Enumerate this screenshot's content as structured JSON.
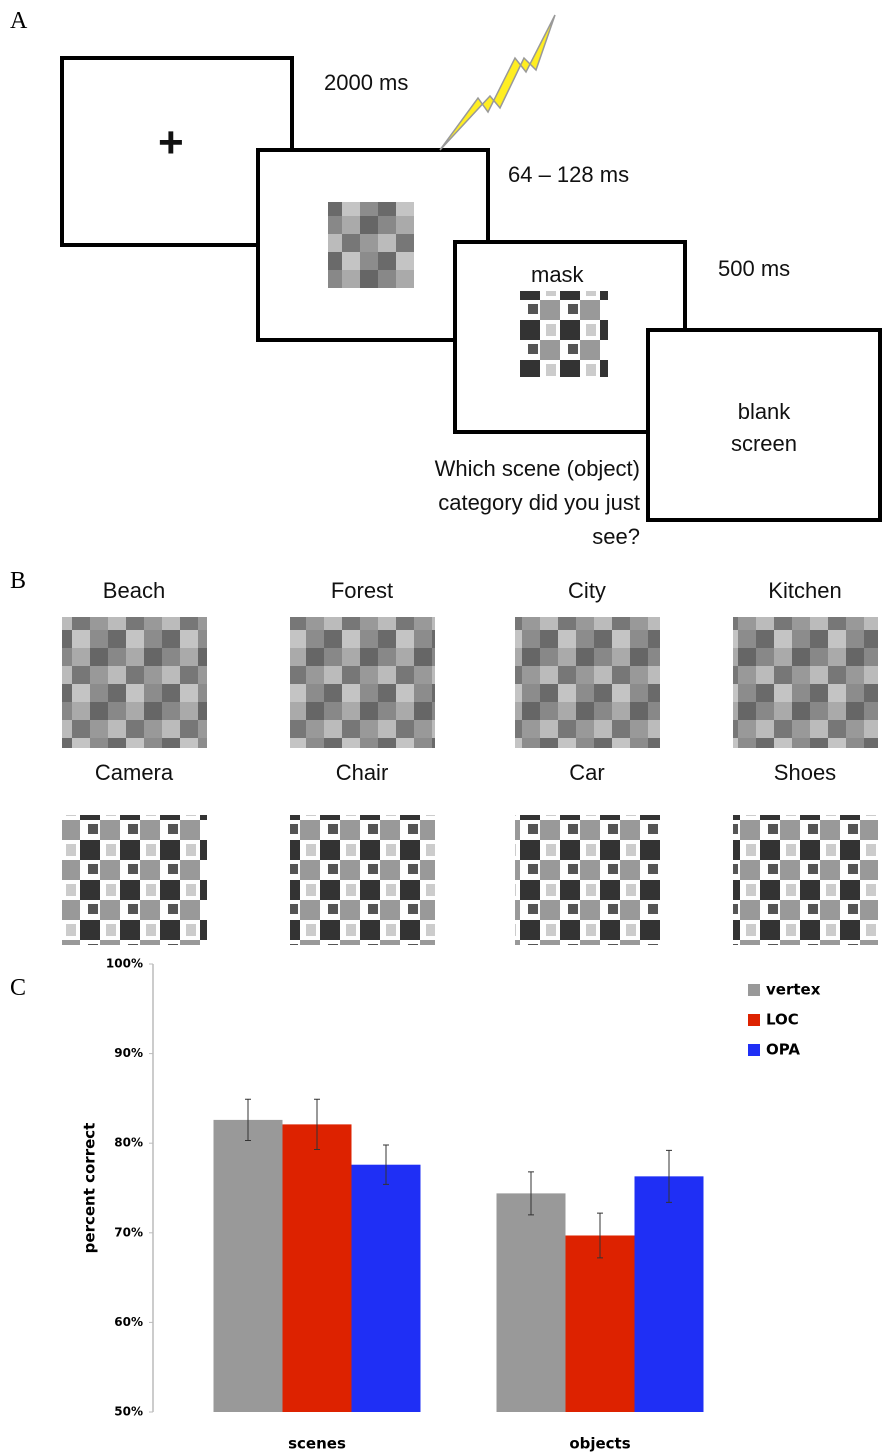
{
  "panels": {
    "a": "A",
    "b": "B",
    "c": "C"
  },
  "diagram": {
    "fixation": "+",
    "durations": [
      "2000 ms",
      "64 – 128 ms",
      "500 ms"
    ],
    "mask": "mask",
    "blank": "blank screen",
    "question": "Which scene (object) category did you just see?"
  },
  "stimuli": {
    "scenes": [
      "Beach",
      "Forest",
      "City",
      "Kitchen"
    ],
    "objects": [
      "Camera",
      "Chair",
      "Car",
      "Shoes"
    ]
  },
  "chart_data": {
    "type": "bar",
    "y_label": "percent correct",
    "categories": [
      "scenes",
      "objects"
    ],
    "series": [
      {
        "name": "vertex",
        "color": "#999999",
        "values": [
          82.6,
          74.4
        ],
        "errors": [
          2.3,
          2.4
        ]
      },
      {
        "name": "LOC",
        "color": "#dd2200",
        "values": [
          82.1,
          69.7
        ],
        "errors": [
          2.8,
          2.5
        ]
      },
      {
        "name": "OPA",
        "color": "#1f2ff5",
        "values": [
          77.6,
          76.3
        ],
        "errors": [
          2.2,
          2.9
        ]
      }
    ],
    "ylim": [
      50,
      100
    ],
    "yticks": [
      {
        "value": 50,
        "label": "50%"
      },
      {
        "value": 60,
        "label": "60%"
      },
      {
        "value": 70,
        "label": "70%"
      },
      {
        "value": 80,
        "label": "80%"
      },
      {
        "value": 90,
        "label": "90%"
      },
      {
        "value": 100,
        "label": "100%"
      }
    ],
    "grid": false,
    "legend": "top-right"
  }
}
